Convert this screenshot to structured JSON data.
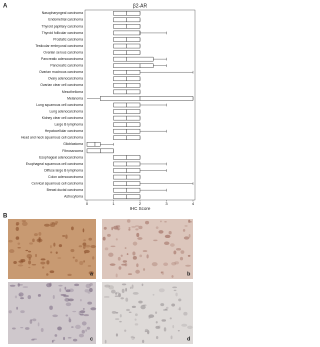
{
  "chart_data": {
    "type": "boxplot",
    "panel_label": "A",
    "title": "β2-AR",
    "xlabel": "IHC Score",
    "categories": [
      "Nasopharyngeal carcinoma",
      "Endometrial carcinoma",
      "Thyroid papillary carcinoma",
      "Thyroid follicular carcinoma",
      "Prostatic carcinoma",
      "Testicular embryonal carcinoma",
      "Ovarian serous carcinoma",
      "Pancreatic adenocarcinoma",
      "Pancreatic carcinoma",
      "Ovarian mucinous carcinoma",
      "Ovary adenocarcinoma",
      "Ovarian clear cell carcinoma",
      "Mesothelioma",
      "Melanoma",
      "Lung squamous cell carcinoma",
      "Lung adenocarcinoma",
      "Kidney clear cell carcinoma",
      "Large B lymphoma",
      "Hepatocellular carcinoma",
      "Head and neck squamous cell carcinoma",
      "Glioblastoma",
      "Fibrosarcoma",
      "Esophageal adenocarcinoma",
      "Esophageal squamous cell carcinoma",
      "Diffuse large B lymphoma",
      "Colon adenocarcinoma",
      "Cervical squamous cell carcinoma",
      "Breast ductal carcinoma",
      "Astrocytoma"
    ],
    "min": [
      1,
      1,
      1,
      1,
      1,
      1,
      1,
      1,
      1,
      1,
      1,
      1,
      1,
      0,
      1,
      1,
      1,
      1,
      1,
      1,
      0,
      0,
      1,
      1,
      1,
      1,
      1,
      1,
      1
    ],
    "q1": [
      1,
      1,
      1,
      1,
      1,
      1,
      1,
      1,
      1,
      1,
      1,
      1,
      1,
      0.5,
      1,
      1,
      1,
      1,
      1,
      1,
      0,
      0,
      1,
      1,
      1,
      1,
      1,
      1,
      1
    ],
    "median": [
      1.5,
      1.5,
      1.5,
      2,
      1.5,
      1.5,
      1.5,
      1.5,
      2,
      1.5,
      1.5,
      1.5,
      1.5,
      2,
      1.5,
      1.5,
      1.5,
      1.5,
      1.5,
      1.5,
      0.3,
      0.5,
      1.5,
      1.5,
      1.5,
      1.5,
      1.5,
      1.5,
      1.5
    ],
    "q3": [
      2,
      2,
      2,
      2,
      2,
      2,
      2,
      2.5,
      2.5,
      2,
      2,
      2,
      2,
      4,
      2,
      2,
      2,
      2,
      2,
      2,
      0.5,
      1,
      2,
      2,
      2,
      2,
      2,
      2,
      2
    ],
    "max": [
      2,
      2,
      2,
      3,
      2,
      2,
      2,
      3,
      3,
      4,
      2,
      2,
      2,
      4,
      3,
      2,
      2,
      2,
      3,
      2,
      1,
      1,
      2,
      3,
      3,
      2,
      4,
      3,
      2
    ],
    "xlim": [
      0,
      4
    ],
    "xticks": [
      0,
      1,
      2,
      3,
      4
    ]
  },
  "panel_b": {
    "panel_label": "B",
    "images": [
      "a",
      "b",
      "c",
      "d"
    ]
  }
}
